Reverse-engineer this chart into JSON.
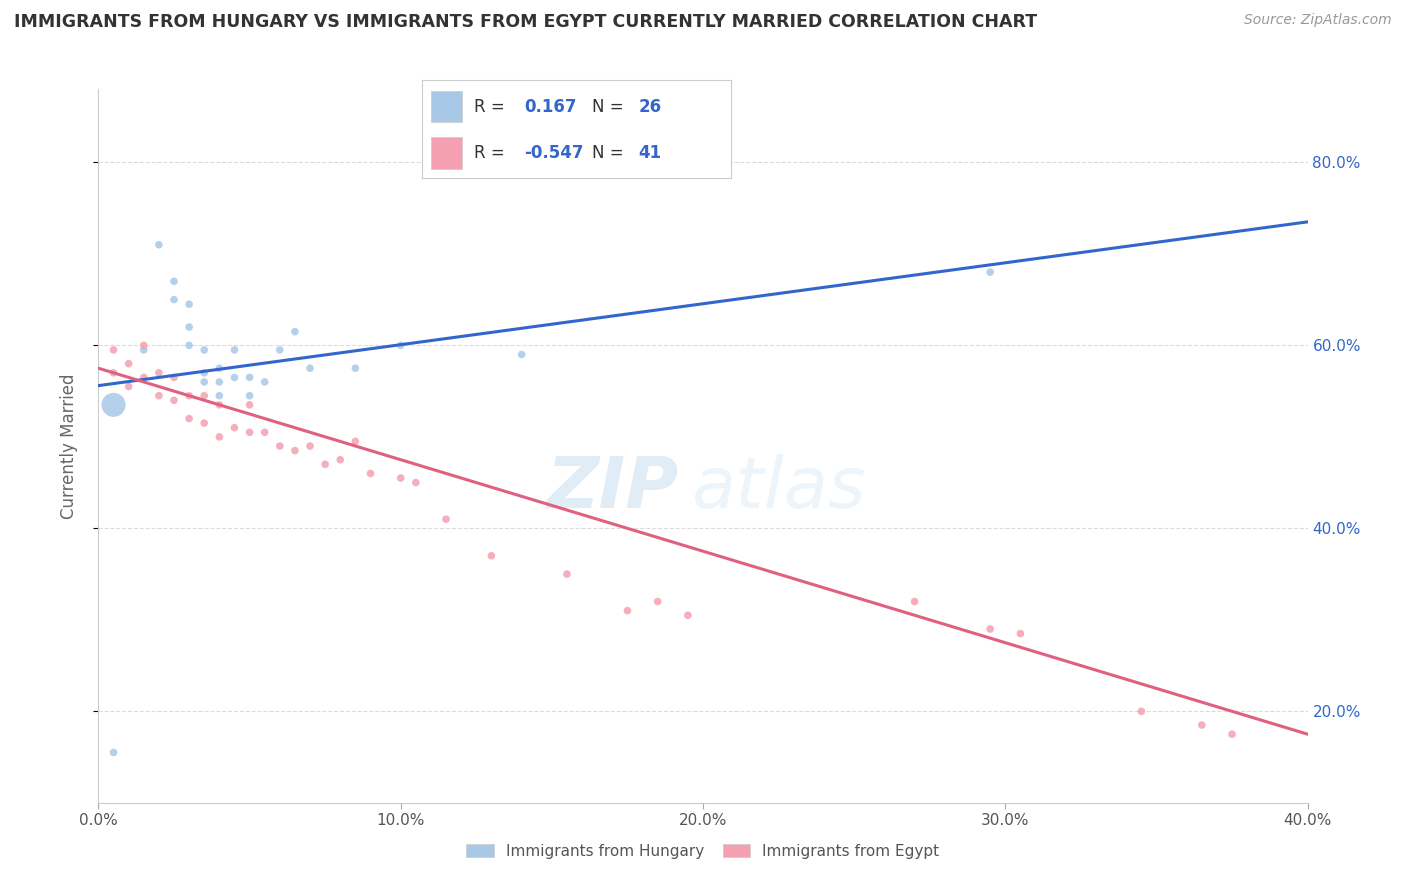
{
  "title": "IMMIGRANTS FROM HUNGARY VS IMMIGRANTS FROM EGYPT CURRENTLY MARRIED CORRELATION CHART",
  "source": "Source: ZipAtlas.com",
  "ylabel": "Currently Married",
  "xlim": [
    0.0,
    0.4
  ],
  "ylim": [
    0.1,
    0.88
  ],
  "yticks_right": [
    0.2,
    0.4,
    0.6,
    0.8
  ],
  "ytick_labels_right": [
    "20.0%",
    "40.0%",
    "60.0%",
    "80.0%"
  ],
  "xticks": [
    0.0,
    0.1,
    0.2,
    0.3,
    0.4
  ],
  "xtick_labels": [
    "0.0%",
    "10.0%",
    "20.0%",
    "30.0%",
    "40.0%"
  ],
  "legend_R1": "0.167",
  "legend_N1": "26",
  "legend_R2": "-0.547",
  "legend_N2": "41",
  "color_hungary": "#a8c8e8",
  "color_egypt": "#f4a0b0",
  "line_color_hungary": "#3366cc",
  "line_color_egypt": "#e06080",
  "background_color": "#ffffff",
  "grid_color": "#cccccc",
  "watermark_zip": "ZIP",
  "watermark_atlas": "atlas",
  "hungary_x": [
    0.005,
    0.015,
    0.02,
    0.025,
    0.025,
    0.03,
    0.03,
    0.03,
    0.035,
    0.035,
    0.035,
    0.04,
    0.04,
    0.04,
    0.045,
    0.045,
    0.05,
    0.05,
    0.055,
    0.06,
    0.065,
    0.07,
    0.085,
    0.1,
    0.295,
    0.14
  ],
  "hungary_y": [
    0.155,
    0.595,
    0.71,
    0.67,
    0.65,
    0.645,
    0.62,
    0.6,
    0.595,
    0.57,
    0.56,
    0.575,
    0.56,
    0.545,
    0.565,
    0.595,
    0.545,
    0.565,
    0.56,
    0.595,
    0.615,
    0.575,
    0.575,
    0.6,
    0.68,
    0.59
  ],
  "hungary_sizes": [
    30,
    30,
    30,
    30,
    30,
    30,
    30,
    30,
    30,
    30,
    30,
    30,
    30,
    30,
    30,
    30,
    30,
    30,
    30,
    30,
    30,
    30,
    30,
    30,
    30,
    30
  ],
  "hungary_big_x": [
    0.005
  ],
  "hungary_big_y": [
    0.535
  ],
  "hungary_big_size": [
    300
  ],
  "egypt_x": [
    0.005,
    0.005,
    0.01,
    0.01,
    0.015,
    0.015,
    0.02,
    0.02,
    0.025,
    0.025,
    0.03,
    0.03,
    0.035,
    0.035,
    0.04,
    0.04,
    0.045,
    0.05,
    0.05,
    0.055,
    0.06,
    0.065,
    0.07,
    0.075,
    0.08,
    0.085,
    0.09,
    0.1,
    0.105,
    0.115,
    0.13,
    0.155,
    0.175,
    0.185,
    0.195,
    0.27,
    0.295,
    0.305,
    0.345,
    0.365,
    0.375
  ],
  "egypt_y": [
    0.595,
    0.57,
    0.58,
    0.555,
    0.6,
    0.565,
    0.57,
    0.545,
    0.565,
    0.54,
    0.545,
    0.52,
    0.545,
    0.515,
    0.5,
    0.535,
    0.51,
    0.505,
    0.535,
    0.505,
    0.49,
    0.485,
    0.49,
    0.47,
    0.475,
    0.495,
    0.46,
    0.455,
    0.45,
    0.41,
    0.37,
    0.35,
    0.31,
    0.32,
    0.305,
    0.32,
    0.29,
    0.285,
    0.2,
    0.185,
    0.175
  ],
  "egypt_sizes": [
    30,
    30,
    30,
    30,
    30,
    30,
    30,
    30,
    30,
    30,
    30,
    30,
    30,
    30,
    30,
    30,
    30,
    30,
    30,
    30,
    30,
    30,
    30,
    30,
    30,
    30,
    30,
    30,
    30,
    30,
    30,
    30,
    30,
    30,
    30,
    30,
    30,
    30,
    30,
    30,
    30
  ]
}
